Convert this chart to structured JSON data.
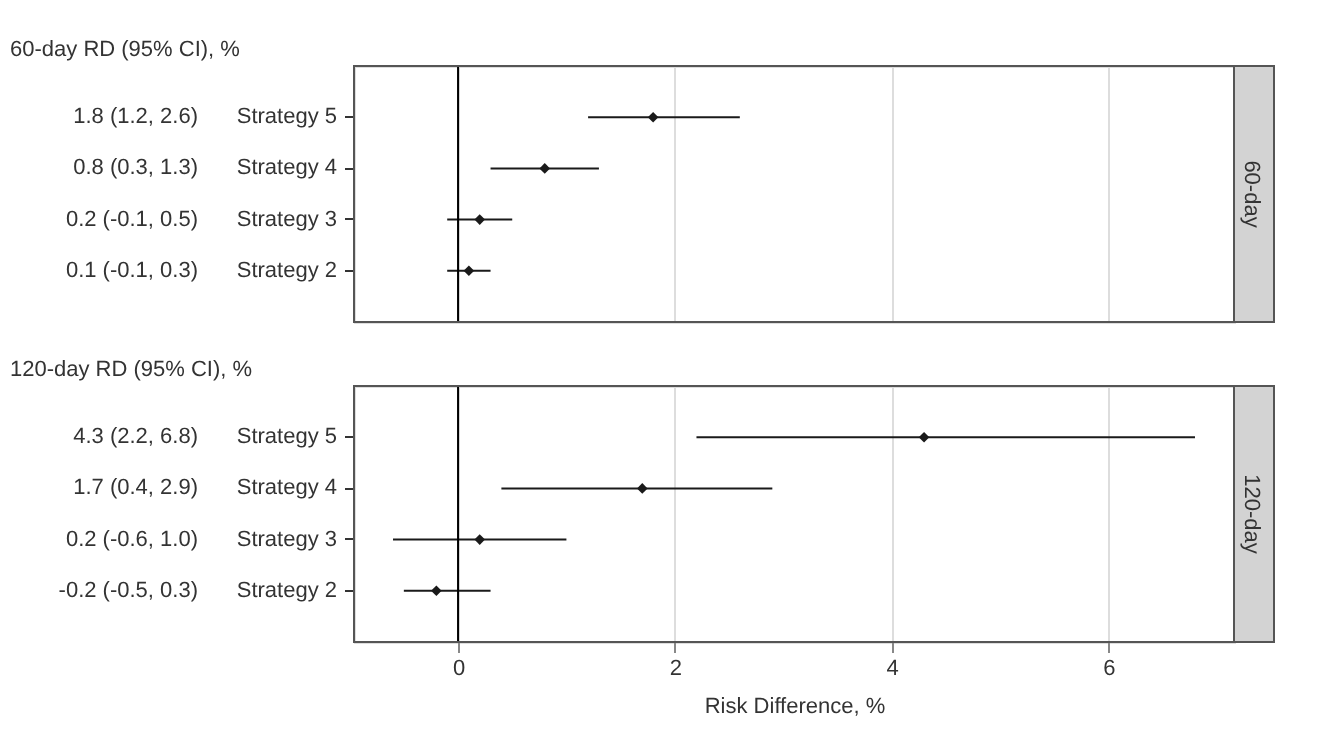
{
  "chart_data": [
    {
      "type": "scatter",
      "orientation": "horizontal",
      "title": "60-day",
      "annotations": [
        "60-day RD (95% CI), %"
      ],
      "categories": [
        "Strategy 5",
        "Strategy 4",
        "Strategy 3",
        "Strategy 2"
      ],
      "values": [
        1.8,
        0.8,
        0.2,
        0.1
      ],
      "errors": [
        [
          1.2,
          2.6
        ],
        [
          0.3,
          1.3
        ],
        [
          -0.1,
          0.5
        ],
        [
          -0.1,
          0.3
        ]
      ],
      "value_labels": [
        "1.8 (1.2, 2.6)",
        "0.8 (0.3, 1.3)",
        "0.2 (-0.1, 0.5)",
        "0.1 (-0.1, 0.3)"
      ],
      "color": "#1a1a1a",
      "marker": "diamond",
      "xlim": [
        -0.96,
        7.16
      ],
      "xticks": [
        0,
        2,
        4,
        6
      ],
      "grid": "x",
      "tick_labels": "y",
      "ref_lines": [
        {
          "axis": "x",
          "value": 0,
          "color": "#000000"
        }
      ]
    },
    {
      "type": "scatter",
      "orientation": "horizontal",
      "title": "120-day",
      "annotations": [
        "120-day RD (95% CI), %"
      ],
      "xlabel": "Risk Difference, %",
      "categories": [
        "Strategy 5",
        "Strategy 4",
        "Strategy 3",
        "Strategy 2"
      ],
      "values": [
        4.3,
        1.7,
        0.2,
        -0.2
      ],
      "errors": [
        [
          2.2,
          6.8
        ],
        [
          0.4,
          2.9
        ],
        [
          -0.6,
          1.0
        ],
        [
          -0.5,
          0.3
        ]
      ],
      "value_labels": [
        "4.3 (2.2, 6.8)",
        "1.7 (0.4, 2.9)",
        "0.2 (-0.6, 1.0)",
        "-0.2 (-0.5, 0.3)"
      ],
      "color": "#1a1a1a",
      "marker": "diamond",
      "xlim": [
        -0.96,
        7.16
      ],
      "xticks": [
        0,
        2,
        4,
        6
      ],
      "grid": "x",
      "ref_lines": [
        {
          "axis": "x",
          "value": 0,
          "color": "#000000"
        }
      ]
    }
  ]
}
